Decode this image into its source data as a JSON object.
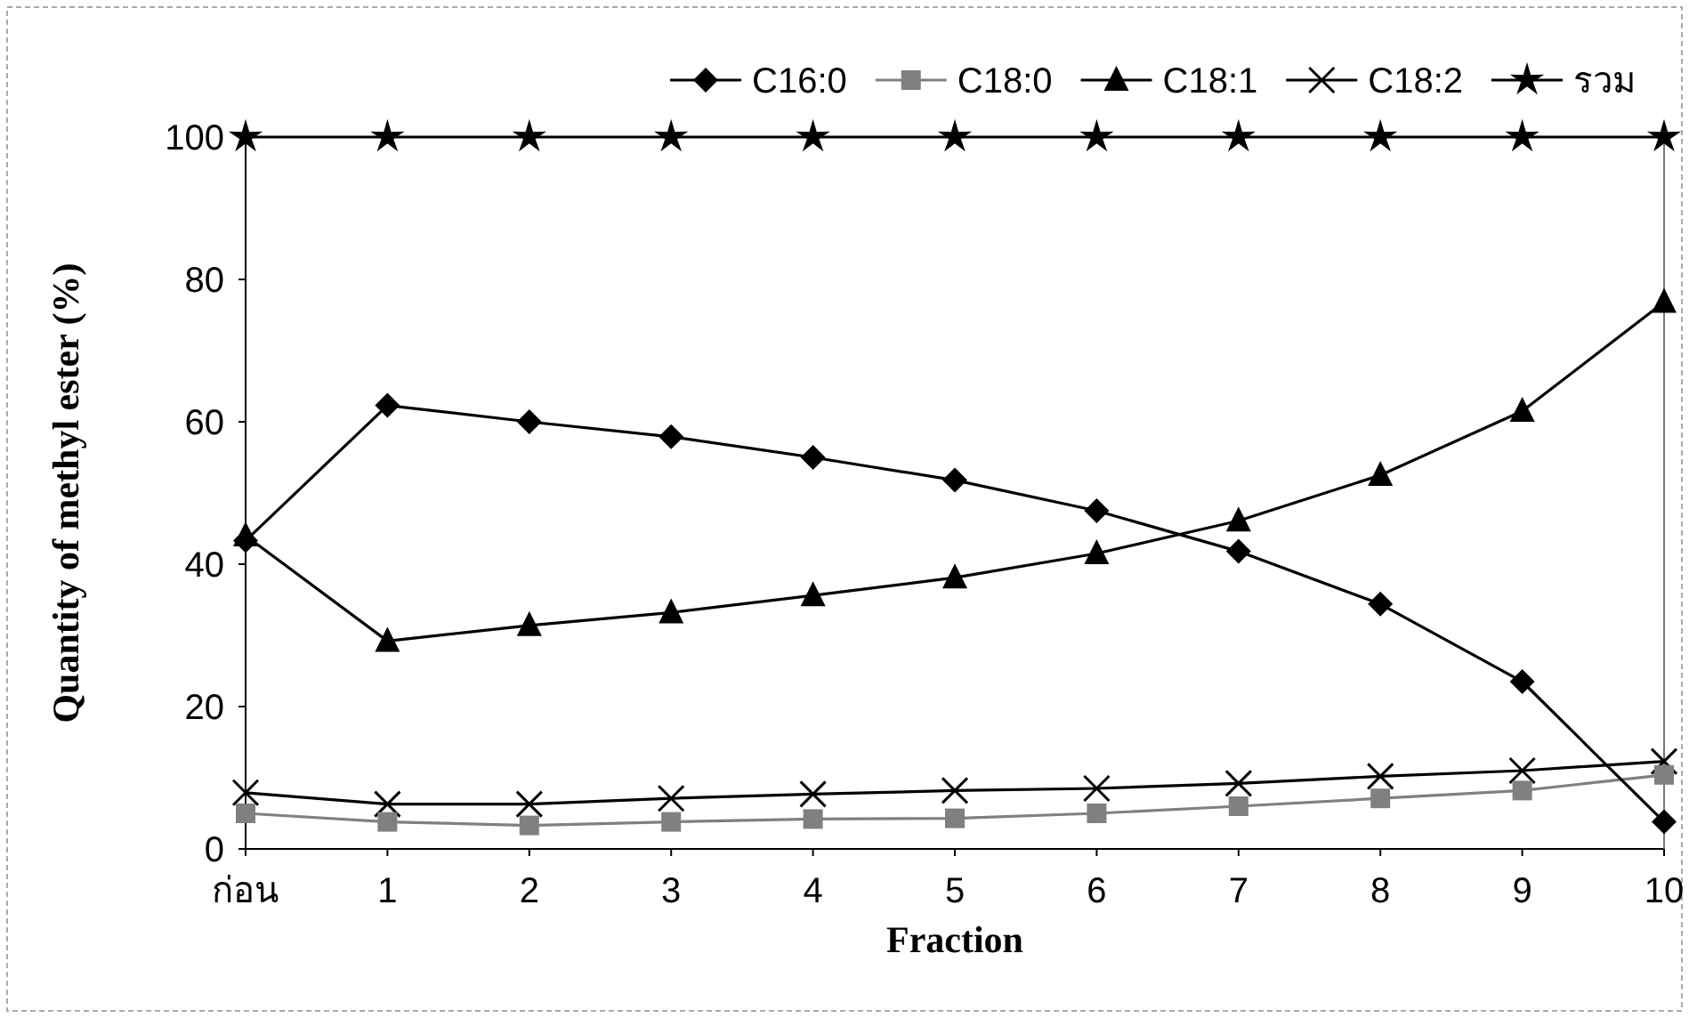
{
  "chart_data": {
    "type": "line",
    "xlabel": "Fraction",
    "ylabel": "Quantity of methyl ester (%)",
    "categories": [
      "ก่อน",
      "1",
      "2",
      "3",
      "4",
      "5",
      "6",
      "7",
      "8",
      "9",
      "10"
    ],
    "ylim": [
      0,
      100
    ],
    "yticks": [
      0,
      20,
      40,
      60,
      80,
      100
    ],
    "grid": false,
    "legend": "top right",
    "line_style": "solid",
    "series": [
      {
        "name": "C16:0",
        "color": "#000000",
        "marker": "diamond",
        "values": [
          43.3,
          62.3,
          60,
          57.9,
          55,
          51.8,
          47.5,
          41.8,
          34.4,
          23.5,
          3.8
        ]
      },
      {
        "name": "C18:0",
        "color": "#808080",
        "marker": "square",
        "values": [
          5,
          3.8,
          3.3,
          3.8,
          4.2,
          4.3,
          5,
          6,
          7.1,
          8.2,
          10.4
        ]
      },
      {
        "name": "C18:1",
        "color": "#000000",
        "marker": "triangle",
        "values": [
          44,
          29.2,
          31.4,
          33.2,
          35.6,
          38.1,
          41.5,
          46.1,
          52.5,
          61.5,
          76.8
        ]
      },
      {
        "name": "C18:2",
        "color": "#000000",
        "marker": "cross",
        "values": [
          7.9,
          6.3,
          6.3,
          7.1,
          7.7,
          8.2,
          8.5,
          9.2,
          10.2,
          11,
          12.3
        ]
      },
      {
        "name": "รวม",
        "color": "#000000",
        "marker": "star",
        "values": [
          100,
          100,
          100,
          100,
          100,
          100,
          100,
          100,
          100,
          100,
          100
        ]
      }
    ]
  }
}
